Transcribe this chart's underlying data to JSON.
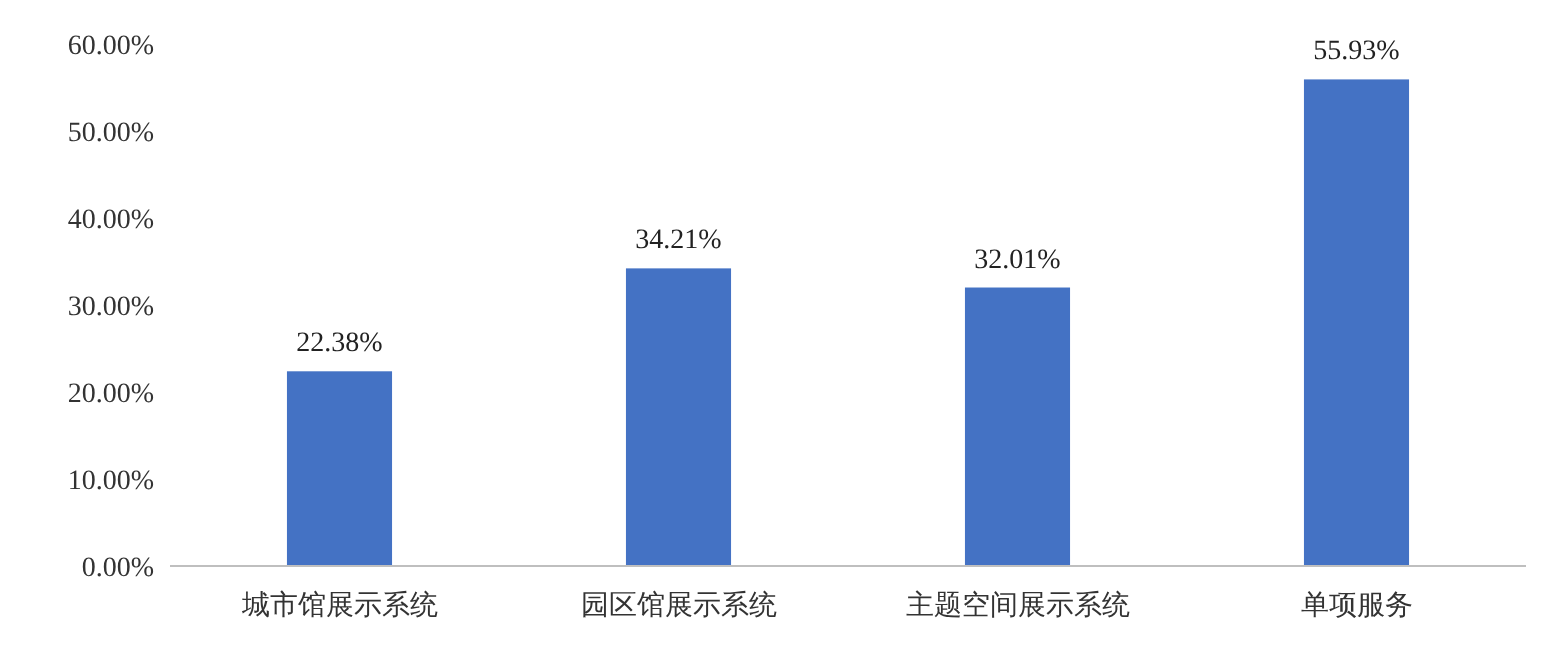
{
  "chart_data": {
    "type": "bar",
    "categories": [
      "城市馆展示系统",
      "园区馆展示系统",
      "主题空间展示系统",
      "单项服务"
    ],
    "values": [
      22.38,
      34.21,
      32.01,
      55.93
    ],
    "value_labels": [
      "22.38%",
      "34.21%",
      "32.01%",
      "55.93%"
    ],
    "color": "#4472c4",
    "ylim": [
      0,
      60
    ],
    "yticks": [
      {
        "value": 0,
        "label": "0.00%"
      },
      {
        "value": 10,
        "label": "10.00%"
      },
      {
        "value": 20,
        "label": "20.00%"
      },
      {
        "value": 30,
        "label": "30.00%"
      },
      {
        "value": 40,
        "label": "40.00%"
      },
      {
        "value": 50,
        "label": "50.00%"
      },
      {
        "value": 60,
        "label": "60.00%"
      }
    ],
    "orientation": "vertical"
  }
}
